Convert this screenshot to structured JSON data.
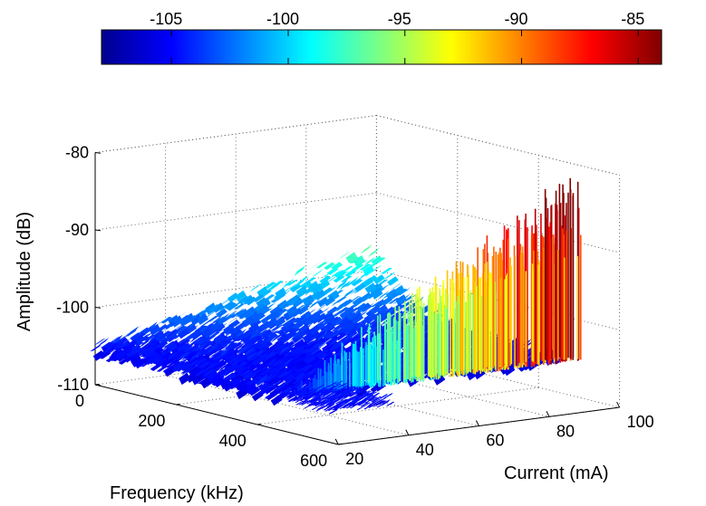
{
  "chart_data": {
    "type": "surface3d",
    "title": "",
    "xlabel": "Frequency (kHz)",
    "ylabel": "Current (mA)",
    "zlabel": "Amplitude (dB)",
    "xlim": [
      0,
      600
    ],
    "ylim": [
      20,
      100
    ],
    "zlim": [
      -110,
      -80
    ],
    "x_ticks": [
      "0",
      "200",
      "400",
      "600"
    ],
    "y_ticks": [
      "20",
      "40",
      "60",
      "80",
      "100"
    ],
    "z_ticks": [
      "-80",
      "-90",
      "-100",
      "-110"
    ],
    "grid": true,
    "colormap": "jet",
    "colorbar": {
      "location": "top",
      "range": [
        -108,
        -84
      ],
      "ticks": [
        "-105",
        "-100",
        "-95",
        "-90",
        "-85"
      ]
    },
    "series": [
      {
        "x": [
          0,
          120,
          240,
          360,
          470
        ],
        "y": [
          20,
          40,
          60,
          80,
          100
        ],
        "z_noise_floor": -105,
        "z_peak_at_x0": [
          -105,
          -104,
          -103,
          -102,
          -101
        ],
        "ridge": {
          "x_range": [
            470,
            600
          ],
          "current": [
            20,
            40,
            60,
            80,
            100
          ],
          "amplitude_max": [
            -105,
            -98,
            -92,
            -86,
            -81
          ]
        }
      }
    ]
  }
}
